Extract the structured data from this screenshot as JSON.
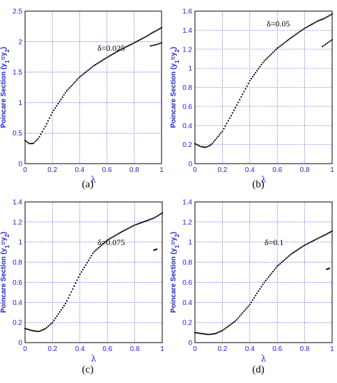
{
  "chart_data": [
    {
      "type": "scatter",
      "panel_label": "(a)",
      "annotation": "δ=0.025",
      "xlabel": "λ",
      "ylabel": "Poincare Section (y1=y2)",
      "xlim": [
        0,
        1
      ],
      "ylim": [
        0,
        2.5
      ],
      "xticks": [
        "0",
        "0.2",
        "0.4",
        "0.6",
        "0.8",
        "1"
      ],
      "yticks": [
        "0",
        "0.5",
        "1",
        "1.5",
        "2",
        "2.5"
      ],
      "grid": true,
      "curve_points": [
        [
          0,
          0.38
        ],
        [
          0.03,
          0.33
        ],
        [
          0.06,
          0.33
        ],
        [
          0.1,
          0.42
        ],
        [
          0.15,
          0.62
        ],
        [
          0.2,
          0.84
        ],
        [
          0.3,
          1.18
        ],
        [
          0.4,
          1.42
        ],
        [
          0.5,
          1.6
        ],
        [
          0.6,
          1.74
        ],
        [
          0.7,
          1.87
        ],
        [
          0.8,
          1.98
        ],
        [
          0.9,
          2.1
        ],
        [
          0.92,
          2.13
        ],
        [
          0.97,
          2.19
        ],
        [
          1.0,
          2.23
        ]
      ],
      "branch_points": [
        [
          0.92,
          1.93
        ],
        [
          0.96,
          1.95
        ],
        [
          1.0,
          1.98
        ]
      ]
    },
    {
      "type": "scatter",
      "panel_label": "(b)",
      "annotation": "δ=0.05",
      "xlabel": "λ",
      "ylabel": "Poincare Section (y1=y2)",
      "xlim": [
        0,
        1
      ],
      "ylim": [
        0,
        1.6
      ],
      "xticks": [
        "0",
        "0.2",
        "0.4",
        "0.6",
        "0.8",
        "1"
      ],
      "yticks": [
        "0",
        "0.2",
        "0.4",
        "0.6",
        "0.8",
        "1",
        "1.2",
        "1.4",
        "1.6"
      ],
      "grid": true,
      "curve_points": [
        [
          0,
          0.21
        ],
        [
          0.04,
          0.18
        ],
        [
          0.08,
          0.17
        ],
        [
          0.12,
          0.2
        ],
        [
          0.2,
          0.34
        ],
        [
          0.3,
          0.6
        ],
        [
          0.4,
          0.87
        ],
        [
          0.5,
          1.07
        ],
        [
          0.6,
          1.21
        ],
        [
          0.7,
          1.32
        ],
        [
          0.8,
          1.42
        ],
        [
          0.9,
          1.5
        ],
        [
          0.94,
          1.52
        ],
        [
          1.0,
          1.57
        ]
      ],
      "branch_points": [
        [
          0.93,
          1.23
        ],
        [
          0.95,
          1.25
        ],
        [
          0.98,
          1.28
        ],
        [
          1.0,
          1.3
        ]
      ]
    },
    {
      "type": "scatter",
      "panel_label": "(c)",
      "annotation": "δ=0.075",
      "xlabel": "λ",
      "ylabel": "Poincare Section (y1=y2)",
      "xlim": [
        0,
        1
      ],
      "ylim": [
        0,
        1.4
      ],
      "xticks": [
        "0",
        "0.2",
        "0.4",
        "0.6",
        "0.8",
        "1"
      ],
      "yticks": [
        "0",
        "0.2",
        "0.4",
        "0.6",
        "0.8",
        "1",
        "1.2",
        "1.4"
      ],
      "grid": true,
      "curve_points": [
        [
          0,
          0.14
        ],
        [
          0.05,
          0.12
        ],
        [
          0.1,
          0.11
        ],
        [
          0.15,
          0.14
        ],
        [
          0.2,
          0.2
        ],
        [
          0.3,
          0.4
        ],
        [
          0.4,
          0.68
        ],
        [
          0.5,
          0.9
        ],
        [
          0.6,
          1.02
        ],
        [
          0.7,
          1.1
        ],
        [
          0.8,
          1.17
        ],
        [
          0.9,
          1.22
        ],
        [
          0.94,
          1.24
        ],
        [
          1.0,
          1.29
        ]
      ],
      "branch_points": [
        [
          0.94,
          0.92
        ],
        [
          0.96,
          0.93
        ]
      ]
    },
    {
      "type": "scatter",
      "panel_label": "(d)",
      "annotation": "δ=0.1",
      "xlabel": "λ",
      "ylabel": "Poincare Section (y1=y2)",
      "xlim": [
        0,
        1
      ],
      "ylim": [
        0,
        1.4
      ],
      "xticks": [
        "0",
        "0.2",
        "0.4",
        "0.6",
        "0.8",
        "1"
      ],
      "yticks": [
        "0",
        "0.2",
        "0.4",
        "0.6",
        "0.8",
        "1",
        "1.2",
        "1.4"
      ],
      "grid": true,
      "curve_points": [
        [
          0,
          0.1
        ],
        [
          0.05,
          0.09
        ],
        [
          0.1,
          0.08
        ],
        [
          0.15,
          0.09
        ],
        [
          0.2,
          0.12
        ],
        [
          0.3,
          0.22
        ],
        [
          0.4,
          0.38
        ],
        [
          0.5,
          0.59
        ],
        [
          0.6,
          0.76
        ],
        [
          0.7,
          0.88
        ],
        [
          0.8,
          0.97
        ],
        [
          0.9,
          1.04
        ],
        [
          0.96,
          1.08
        ],
        [
          1.0,
          1.11
        ]
      ],
      "branch_points": [
        [
          0.96,
          0.73
        ],
        [
          0.98,
          0.74
        ]
      ]
    }
  ]
}
